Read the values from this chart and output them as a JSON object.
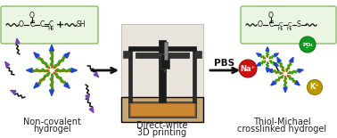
{
  "bg_color": "#ffffff",
  "arrow_color": "#111111",
  "section1_label1": "Non-covalent",
  "section1_label2": "hydrogel",
  "section2_label1": "Direct-write",
  "section2_label2": "3D printing",
  "section3_label1": "Thiol-Michael",
  "section3_label2": "crosslinked hydrogel",
  "pbs_label": "PBS",
  "box_bg": "#eaf5e2",
  "box_border": "#88bb66",
  "center_color": "#b85a10",
  "arm_green": "#33aa11",
  "arm_black": "#111111",
  "terminal_blue": "#2244cc",
  "terminal_purple": "#7744aa",
  "ion_na_color": "#cc1111",
  "ion_k_color": "#bb9900",
  "ion_po4_color": "#119922",
  "ion_na_text": "Na⁺",
  "ion_k_text": "K⁺",
  "ion_po4_text": "PO₄³⁻",
  "label_fontsize": 7.0,
  "label_color": "#222222",
  "photo_bg": "#d8cfc0",
  "photo_wall": "#e8e4dc",
  "photo_floor": "#c8a870",
  "printer_black": "#1a1a1a",
  "printer_dark": "#333333",
  "printer_frame": "#222222"
}
